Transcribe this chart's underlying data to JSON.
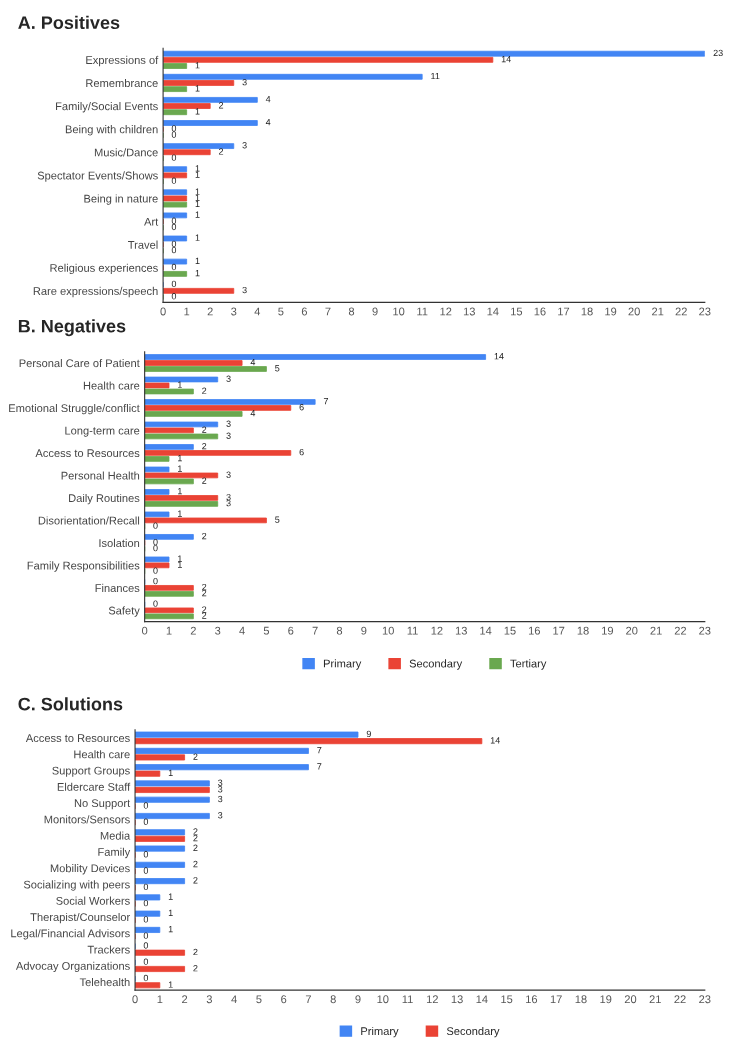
{
  "chart_data": [
    {
      "type": "bar",
      "orientation": "horizontal",
      "title": "A. Positives",
      "data_labels": true,
      "legend": false,
      "grid": false,
      "xlim": [
        0,
        23
      ],
      "xticks": [
        0,
        1,
        2,
        3,
        4,
        5,
        6,
        7,
        8,
        9,
        10,
        11,
        12,
        13,
        14,
        15,
        16,
        17,
        18,
        19,
        20,
        21,
        22,
        23
      ],
      "categories": [
        "Expressions of",
        "Remembrance",
        "Family/Social Events",
        "Being with children",
        "Music/Dance",
        "Spectator Events/Shows",
        "Being in nature",
        "Art",
        "Travel",
        "Religious experiences",
        "Rare expressions/speech"
      ],
      "series": [
        {
          "color": "#4285f4",
          "values": [
            23,
            11,
            4,
            4,
            3,
            1,
            1,
            1,
            1,
            1,
            0
          ]
        },
        {
          "color": "#ea4335",
          "values": [
            14,
            3,
            2,
            0,
            2,
            1,
            1,
            0,
            0,
            0,
            3
          ]
        },
        {
          "color": "#6aa84f",
          "values": [
            1,
            1,
            1,
            0,
            0,
            0,
            1,
            0,
            0,
            1,
            0
          ]
        }
      ]
    },
    {
      "type": "bar",
      "orientation": "horizontal",
      "title": "B. Negatives",
      "data_labels": true,
      "legend": "bottom",
      "grid": false,
      "xlim": [
        0,
        23
      ],
      "xticks": [
        0,
        1,
        2,
        3,
        4,
        5,
        6,
        7,
        8,
        9,
        10,
        11,
        12,
        13,
        14,
        15,
        16,
        17,
        18,
        19,
        20,
        21,
        22,
        23
      ],
      "categories": [
        "Personal Care of Patient",
        "Health care",
        "Emotional Struggle/conflict",
        "Long-term care",
        "Access to Resources",
        "Personal Health",
        "Daily Routines",
        "Disorientation/Recall",
        "Isolation",
        "Family Responsibilities",
        "Finances",
        "Safety"
      ],
      "series": [
        {
          "name": "Primary",
          "color": "#4285f4",
          "values": [
            14,
            3,
            7,
            3,
            2,
            1,
            1,
            1,
            2,
            1,
            0,
            0
          ]
        },
        {
          "name": "Secondary",
          "color": "#ea4335",
          "values": [
            4,
            1,
            6,
            2,
            6,
            3,
            3,
            5,
            0,
            1,
            2,
            2
          ]
        },
        {
          "name": "Tertiary",
          "color": "#6aa84f",
          "values": [
            5,
            2,
            4,
            3,
            1,
            2,
            3,
            0,
            0,
            0,
            2,
            2
          ]
        }
      ]
    },
    {
      "type": "bar",
      "orientation": "horizontal",
      "title": "C. Solutions",
      "data_labels": true,
      "legend": "bottom",
      "grid": false,
      "xlim": [
        0,
        23
      ],
      "xticks": [
        0,
        1,
        2,
        3,
        4,
        5,
        6,
        7,
        8,
        9,
        10,
        11,
        12,
        13,
        14,
        15,
        16,
        17,
        18,
        19,
        20,
        21,
        22,
        23
      ],
      "categories": [
        "Access to Resources",
        "Health care",
        "Support Groups",
        "Eldercare Staff",
        "No Support",
        "Monitors/Sensors",
        "Media",
        "Family",
        "Mobility Devices",
        "Socializing with peers",
        "Social Workers",
        "Therapist/Counselor",
        "Legal/Financial Advisors",
        "Trackers",
        "Advocay Organizations",
        "Telehealth"
      ],
      "series": [
        {
          "name": "Primary",
          "color": "#4285f4",
          "values": [
            9,
            7,
            7,
            3,
            3,
            3,
            2,
            2,
            2,
            2,
            1,
            1,
            1,
            0,
            0,
            0
          ]
        },
        {
          "name": "Secondary",
          "color": "#ea4335",
          "values": [
            14,
            2,
            1,
            3,
            0,
            0,
            2,
            0,
            0,
            0,
            0,
            0,
            0,
            2,
            2,
            1
          ]
        }
      ]
    }
  ]
}
